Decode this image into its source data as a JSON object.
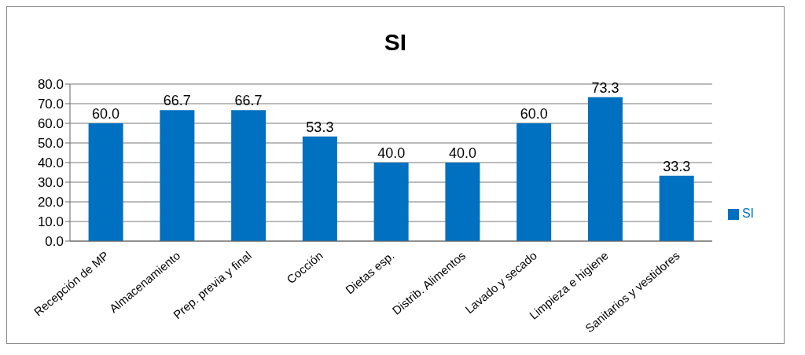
{
  "chart_data": {
    "type": "bar",
    "title": "SI",
    "categories": [
      "Recepción de MP",
      "Almacenamiento",
      "Prep. previa y final",
      "Cocción",
      "Dietas esp.",
      "Distrib. Alimentos",
      "Lavado y secado",
      "Limpieza e higiene",
      "Sanitarios y vestidores"
    ],
    "series": [
      {
        "name": "SI",
        "color": "#0070c0",
        "values": [
          60.0,
          66.7,
          66.7,
          53.3,
          40.0,
          40.0,
          60.0,
          73.3,
          33.3
        ],
        "value_labels": [
          "60.0",
          "66.7",
          "66.7",
          "53.3",
          "40.0",
          "40.0",
          "60.0",
          "73.3",
          "33.3"
        ]
      }
    ],
    "ylim": [
      0,
      80
    ],
    "yticks": [
      {
        "value": 0,
        "label": "0.0"
      },
      {
        "value": 10,
        "label": "10.0"
      },
      {
        "value": 20,
        "label": "20.0"
      },
      {
        "value": 30,
        "label": "30.0"
      },
      {
        "value": 40,
        "label": "40.0"
      },
      {
        "value": 50,
        "label": "50.0"
      },
      {
        "value": 60,
        "label": "60.0"
      },
      {
        "value": 70,
        "label": "70.0"
      },
      {
        "value": 80,
        "label": "80.0"
      }
    ],
    "grid": "y",
    "legend": "right"
  }
}
